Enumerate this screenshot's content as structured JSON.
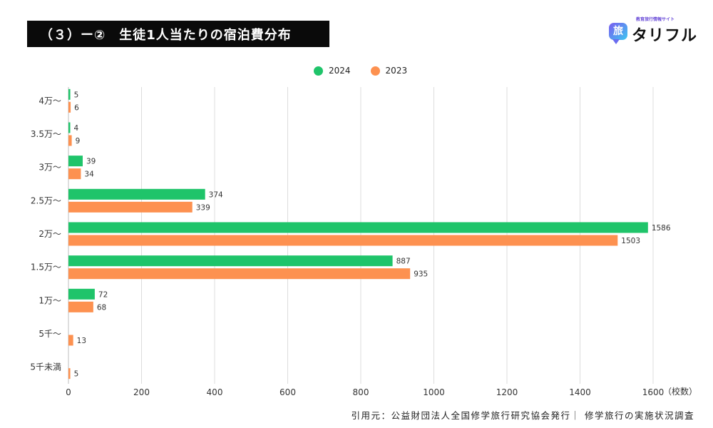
{
  "title": "（３）ー②　生徒1人当たりの宿泊費分布",
  "brand": {
    "tagline": "教育旅行情報サイト",
    "mark": "旅",
    "name": "タリフル"
  },
  "footer": "引用元：公益財団法人全国修学旅行研究協会発行｜ 修学旅行の実施状況調査",
  "colors": {
    "2024": "#1fc46a",
    "2023": "#fd9150"
  },
  "chart_data": {
    "type": "bar",
    "orientation": "horizontal",
    "categories": [
      "4万～",
      "3.5万～",
      "3万～",
      "2.5万～",
      "2万～",
      "1.5万～",
      "1万～",
      "5千～",
      "5千未満"
    ],
    "series": [
      {
        "name": "2024",
        "color": "#1fc46a",
        "values": [
          5,
          4,
          39,
          374,
          1586,
          887,
          72,
          null,
          null
        ]
      },
      {
        "name": "2023",
        "color": "#fd9150",
        "values": [
          6,
          9,
          34,
          339,
          1503,
          935,
          68,
          13,
          5
        ]
      }
    ],
    "xticks": [
      0,
      200,
      400,
      600,
      800,
      1000,
      1200,
      1400,
      1600
    ],
    "xlim": [
      0,
      1600
    ],
    "xunit": "（校数）",
    "grid": true,
    "legend": "top-center"
  }
}
